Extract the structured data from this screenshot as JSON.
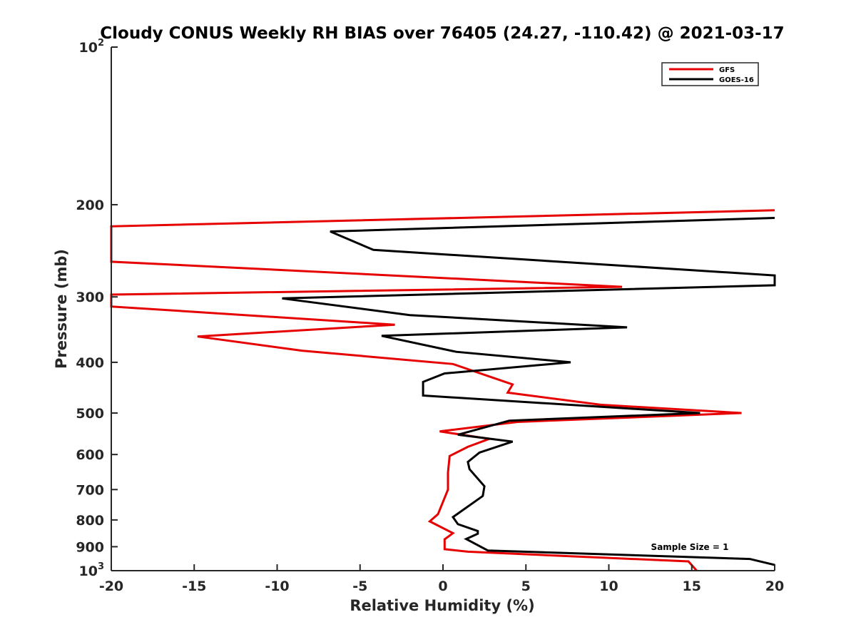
{
  "chart_data": {
    "type": "line",
    "title": "Cloudy CONUS Weekly RH BIAS over 76405 (24.27, -110.42) @ 2021-03-17",
    "xlabel": "Relative Humidity (%)",
    "ylabel": "Pressure (mb)",
    "xlim": [
      -20,
      20
    ],
    "ylim": [
      100,
      1000
    ],
    "yscale": "log",
    "y_reversed": true,
    "x_ticks": [
      -20,
      -15,
      -10,
      -5,
      0,
      5,
      10,
      15,
      20
    ],
    "x_tick_labels": [
      "-20",
      "-15",
      "-10",
      "-5",
      "0",
      "5",
      "10",
      "15",
      "20"
    ],
    "y_ticks": [
      200,
      300,
      400,
      500,
      600,
      700,
      800,
      900
    ],
    "y_tick_labels": [
      "200",
      "300",
      "400",
      "500",
      "600",
      "700",
      "800",
      "900"
    ],
    "y_end_labels": [
      {
        "value": 100,
        "base": "10",
        "exp": "2"
      },
      {
        "value": 1000,
        "base": "10",
        "exp": "3"
      }
    ],
    "grid": false,
    "legend_position": "top-right",
    "annotation": "Sample Size = 1",
    "series": [
      {
        "name": "GFS",
        "color": "#e60000",
        "points": [
          [
            20,
            205
          ],
          [
            -20,
            220
          ],
          [
            -20,
            257
          ],
          [
            -13.5,
            263
          ],
          [
            10.8,
            287
          ],
          [
            -20,
            297
          ],
          [
            -20,
            313
          ],
          [
            -2.9,
            339
          ],
          [
            -14.8,
            357
          ],
          [
            -8.5,
            380
          ],
          [
            0.6,
            403
          ],
          [
            4.2,
            441
          ],
          [
            3.9,
            457
          ],
          [
            9.5,
            482
          ],
          [
            18.0,
            500
          ],
          [
            4.5,
            520
          ],
          [
            -0.2,
            542
          ],
          [
            2.8,
            560
          ],
          [
            1.5,
            580
          ],
          [
            0.4,
            604
          ],
          [
            0.3,
            650
          ],
          [
            0.3,
            700
          ],
          [
            -0.3,
            780
          ],
          [
            -0.8,
            805
          ],
          [
            0.6,
            848
          ],
          [
            0.1,
            871
          ],
          [
            0.1,
            910
          ],
          [
            1.5,
            920
          ],
          [
            14.8,
            960
          ],
          [
            15.3,
            1000
          ]
        ]
      },
      {
        "name": "GOES-16",
        "color": "#000000",
        "points": [
          [
            20,
            212
          ],
          [
            -6.8,
            225
          ],
          [
            -4.2,
            244
          ],
          [
            20,
            273
          ],
          [
            20,
            285
          ],
          [
            -9.7,
            302
          ],
          [
            -2.0,
            325
          ],
          [
            11.1,
            343
          ],
          [
            -3.7,
            356
          ],
          [
            0.8,
            382
          ],
          [
            7.7,
            400
          ],
          [
            0.1,
            420
          ],
          [
            -1.2,
            436
          ],
          [
            -1.2,
            463
          ],
          [
            15.5,
            500
          ],
          [
            4.0,
            517
          ],
          [
            0.9,
            550
          ],
          [
            4.2,
            567
          ],
          [
            2.2,
            595
          ],
          [
            1.5,
            620
          ],
          [
            1.6,
            640
          ],
          [
            2.5,
            690
          ],
          [
            2.4,
            720
          ],
          [
            0.6,
            790
          ],
          [
            0.9,
            815
          ],
          [
            2.1,
            840
          ],
          [
            2.1,
            850
          ],
          [
            1.4,
            870
          ],
          [
            2.7,
            915
          ],
          [
            18.5,
            950
          ],
          [
            20,
            975
          ]
        ]
      }
    ]
  }
}
